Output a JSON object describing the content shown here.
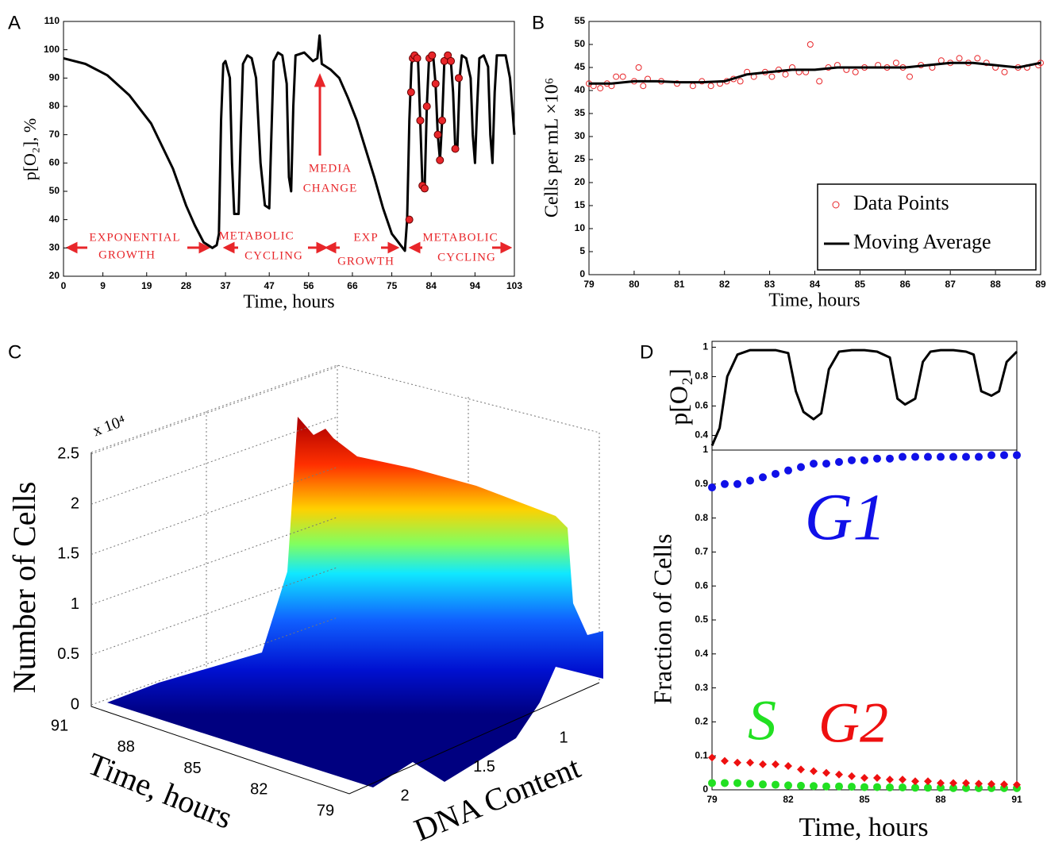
{
  "chart_data": [
    {
      "type": "line",
      "panel": "A",
      "x_label": "Time, hours",
      "y_label": "p[O₂], %",
      "xlim": [
        0,
        103
      ],
      "xticks": [
        0,
        9,
        19,
        28,
        37,
        47,
        56,
        66,
        75,
        84,
        94,
        103
      ],
      "ylim": [
        20,
        110
      ],
      "yticks": [
        20,
        30,
        40,
        50,
        60,
        70,
        80,
        90,
        100,
        110
      ],
      "annotations": [
        [
          "EXPONENTIAL",
          "GROWTH"
        ],
        [
          "METABOLIC",
          "CYCLING"
        ],
        [
          "MEDIA",
          "CHANGE"
        ],
        [
          "EXP",
          "GROWTH"
        ],
        [
          "METABOLIC",
          "CYCLING"
        ]
      ],
      "annotation_color": "#e8262a",
      "series": [
        {
          "color": "#000000",
          "style": "line",
          "x": [
            0,
            5,
            10,
            15,
            20,
            25,
            28,
            30,
            32,
            33,
            34,
            35,
            35.5,
            36,
            36.5,
            37,
            38,
            38.5,
            39,
            40,
            40.5,
            41,
            42,
            43,
            44,
            45,
            46,
            47,
            47.5,
            48,
            49,
            50,
            51,
            51.5,
            52,
            52.5,
            53,
            55,
            57,
            58,
            58.5,
            59,
            61,
            63,
            65,
            67,
            69,
            71,
            73,
            75,
            76,
            77,
            78,
            78.5,
            79,
            79.5,
            80,
            81,
            81.5,
            82,
            82.5,
            83,
            83.5,
            84,
            84.5,
            85,
            85.5,
            86,
            86.5,
            87,
            88,
            88.5,
            89,
            89.5,
            90,
            90.5,
            91,
            92,
            93,
            93.5,
            94,
            94.5,
            95,
            96,
            97,
            97.5,
            98,
            98.5,
            99,
            101,
            102,
            103
          ],
          "values": [
            97,
            95,
            91,
            84,
            74,
            58,
            45,
            38,
            32,
            31,
            30,
            31,
            35,
            75,
            95,
            96,
            90,
            60,
            42,
            42,
            70,
            95,
            98,
            97,
            90,
            60,
            45,
            44,
            70,
            96,
            99,
            98,
            88,
            55,
            50,
            80,
            98,
            99,
            96,
            97,
            105,
            95,
            93,
            90,
            83,
            75,
            65,
            55,
            44,
            35,
            33,
            31,
            29,
            40,
            75,
            95,
            98,
            96,
            75,
            52,
            51,
            80,
            97,
            98,
            97,
            88,
            70,
            61,
            75,
            96,
            98,
            96,
            85,
            65,
            66,
            90,
            98,
            97,
            90,
            70,
            60,
            80,
            97,
            98,
            94,
            70,
            60,
            85,
            98,
            98,
            90,
            70
          ]
        },
        {
          "color": "#e8262a",
          "style": "markers",
          "marker": "circle",
          "x": [
            79,
            79.4,
            79.8,
            80.2,
            80.8,
            81.5,
            82,
            82.5,
            83,
            83.6,
            84.2,
            85,
            85.5,
            86,
            86.5,
            87,
            87.8,
            88.5,
            89.5,
            90.3
          ],
          "values": [
            40,
            85,
            97,
            98,
            97,
            75,
            52,
            51,
            80,
            97,
            98,
            88,
            70,
            61,
            75,
            96,
            98,
            96,
            65,
            90
          ]
        }
      ]
    },
    {
      "type": "scatter",
      "panel": "B",
      "x_label": "Time, hours",
      "y_label": "Cells per mL ×10⁶",
      "xlim": [
        79,
        89
      ],
      "xticks": [
        79,
        80,
        81,
        82,
        83,
        84,
        85,
        86,
        87,
        88,
        89
      ],
      "ylim": [
        0,
        55
      ],
      "yticks": [
        0,
        5,
        10,
        15,
        20,
        25,
        30,
        35,
        40,
        45,
        50,
        55
      ],
      "legend": "lower right",
      "series": [
        {
          "name": "Data Points",
          "color": "#e8262a",
          "style": "markers",
          "marker": "open circle",
          "x": [
            79,
            79.1,
            79.25,
            79.4,
            79.5,
            79.6,
            79.75,
            80,
            80.1,
            80.2,
            80.3,
            80.6,
            80.95,
            81.3,
            81.5,
            81.7,
            81.9,
            82.05,
            82.2,
            82.35,
            82.5,
            82.65,
            82.9,
            83.05,
            83.2,
            83.35,
            83.5,
            83.65,
            83.8,
            83.9,
            84.1,
            84.3,
            84.5,
            84.7,
            84.9,
            85.1,
            85.4,
            85.6,
            85.8,
            85.95,
            86.1,
            86.35,
            86.6,
            86.8,
            87,
            87.2,
            87.4,
            87.6,
            87.8,
            88,
            88.2,
            88.5,
            88.7,
            88.95,
            89
          ],
          "values": [
            41.5,
            41,
            40.5,
            41.5,
            41,
            43,
            43,
            42,
            45,
            41,
            42.5,
            42,
            41.5,
            41,
            42,
            41,
            41.5,
            42,
            42.5,
            42,
            44,
            43,
            44,
            43,
            44.5,
            43.5,
            45,
            44,
            44,
            50,
            42,
            45,
            45.5,
            44.5,
            44,
            45,
            45.5,
            45,
            46,
            45,
            43,
            45.5,
            45,
            46.5,
            46,
            47,
            46,
            47,
            46,
            45,
            44,
            45,
            45,
            45.5,
            46
          ]
        },
        {
          "name": "Moving Average",
          "color": "#000000",
          "style": "line",
          "x": [
            79,
            79.5,
            80,
            80.5,
            81,
            81.5,
            82,
            82.5,
            83,
            83.5,
            84,
            84.5,
            85,
            85.5,
            86,
            86.5,
            87,
            87.5,
            88,
            88.5,
            89
          ],
          "values": [
            41.5,
            41.5,
            42,
            42,
            41.8,
            41.8,
            42,
            43.5,
            44,
            44.5,
            44.5,
            45,
            45,
            45,
            45,
            45.5,
            46,
            46,
            45.5,
            45,
            46
          ]
        }
      ]
    },
    {
      "type": "surface",
      "panel": "C",
      "z_label": "Number of Cells",
      "y_label": "Time, hours",
      "x_label": "DNA Content",
      "z_multiplier": "x 10⁴",
      "zlim": [
        0,
        2.5
      ],
      "zticks": [
        0,
        0.5,
        1,
        1.5,
        2,
        2.5
      ],
      "yticks": [
        91,
        88,
        85,
        82,
        79
      ],
      "xticks": [
        1,
        1.5,
        2
      ]
    },
    {
      "type": "line",
      "panel": "D",
      "y_label": "p[O₂]",
      "xlim": [
        79,
        91
      ],
      "ylim": [
        0.3,
        1.04
      ],
      "yticks": [
        0.4,
        0.6,
        0.8,
        1
      ],
      "series": [
        {
          "color": "#000000",
          "style": "line",
          "x": [
            79,
            79.3,
            79.6,
            80,
            80.5,
            81,
            81.5,
            82,
            82.3,
            82.6,
            83,
            83.3,
            83.6,
            84,
            84.5,
            85,
            85.5,
            86,
            86.3,
            86.6,
            87,
            87.3,
            87.6,
            88,
            88.5,
            89,
            89.3,
            89.6,
            90,
            90.3,
            90.6,
            91
          ],
          "values": [
            0.33,
            0.45,
            0.8,
            0.95,
            0.98,
            0.98,
            0.98,
            0.96,
            0.7,
            0.56,
            0.51,
            0.55,
            0.85,
            0.97,
            0.98,
            0.98,
            0.97,
            0.93,
            0.65,
            0.61,
            0.65,
            0.9,
            0.97,
            0.98,
            0.98,
            0.97,
            0.95,
            0.7,
            0.67,
            0.7,
            0.9,
            0.97
          ]
        }
      ]
    },
    {
      "type": "scatter",
      "x_label": "Time, hours",
      "y_label": "Fraction of Cells",
      "xlim": [
        79,
        91
      ],
      "xticks": [
        79,
        82,
        85,
        88,
        91
      ],
      "ylim": [
        0,
        1
      ],
      "yticks": [
        0,
        0.1,
        0.2,
        0.3,
        0.4,
        0.5,
        0.6,
        0.7,
        0.8,
        0.9,
        1
      ],
      "series": [
        {
          "name": "G1",
          "color": "#1010e8",
          "style": "markers",
          "marker": "circle",
          "x": [
            79,
            79.5,
            80,
            80.5,
            81,
            81.5,
            82,
            82.5,
            83,
            83.5,
            84,
            84.5,
            85,
            85.5,
            86,
            86.5,
            87,
            87.5,
            88,
            88.5,
            89,
            89.5,
            90,
            90.5,
            91
          ],
          "values": [
            0.89,
            0.9,
            0.9,
            0.91,
            0.92,
            0.93,
            0.94,
            0.95,
            0.96,
            0.96,
            0.965,
            0.97,
            0.97,
            0.975,
            0.975,
            0.98,
            0.98,
            0.98,
            0.98,
            0.98,
            0.98,
            0.98,
            0.985,
            0.985,
            0.985
          ]
        },
        {
          "name": "S",
          "color": "#22e022",
          "style": "markers",
          "marker": "circle",
          "x": [
            79,
            79.5,
            80,
            80.5,
            81,
            81.5,
            82,
            82.5,
            83,
            83.5,
            84,
            84.5,
            85,
            85.5,
            86,
            86.5,
            87,
            87.5,
            88,
            88.5,
            89,
            89.5,
            90,
            90.5,
            91
          ],
          "values": [
            0.02,
            0.02,
            0.02,
            0.018,
            0.016,
            0.015,
            0.013,
            0.012,
            0.011,
            0.01,
            0.01,
            0.009,
            0.008,
            0.008,
            0.007,
            0.007,
            0.006,
            0.006,
            0.006,
            0.005,
            0.005,
            0.005,
            0.005,
            0.005,
            0.005
          ]
        },
        {
          "name": "G2",
          "color": "#ee1010",
          "style": "markers",
          "marker": "diamond",
          "x": [
            79,
            79.5,
            80,
            80.5,
            81,
            81.5,
            82,
            82.5,
            83,
            83.5,
            84,
            84.5,
            85,
            85.5,
            86,
            86.5,
            87,
            87.5,
            88,
            88.5,
            89,
            89.5,
            90,
            90.5,
            91
          ],
          "values": [
            0.095,
            0.085,
            0.08,
            0.08,
            0.075,
            0.075,
            0.07,
            0.06,
            0.055,
            0.05,
            0.045,
            0.04,
            0.035,
            0.035,
            0.03,
            0.03,
            0.025,
            0.025,
            0.02,
            0.02,
            0.02,
            0.018,
            0.017,
            0.016,
            0.015
          ]
        }
      ]
    }
  ]
}
